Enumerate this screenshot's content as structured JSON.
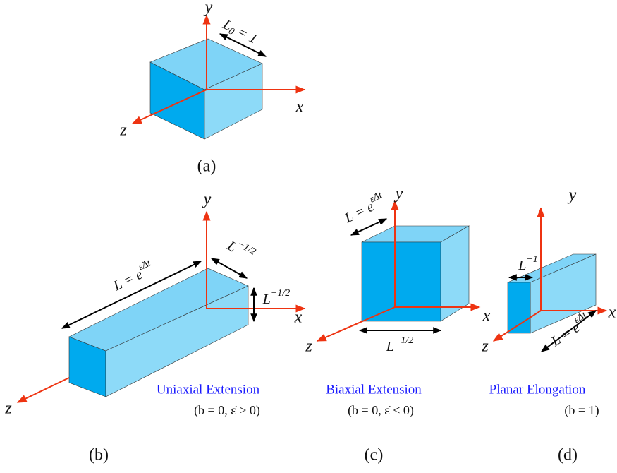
{
  "panels": [
    {
      "label": "(a)",
      "axes": {
        "x": "x",
        "y": "y",
        "z": "z"
      },
      "dims": [
        {
          "base": "L",
          "sub": "0",
          "after": " = 1"
        }
      ]
    },
    {
      "label": "(b)",
      "axes": {
        "x": "x",
        "y": "y",
        "z": "z"
      },
      "title": "Uniaxial Extension",
      "condition": "(b = 0, ε̇ > 0)",
      "dims": [
        {
          "base": "L = e",
          "sup": "ε̇Δt"
        },
        {
          "base": "L",
          "sup": "−1/2"
        },
        {
          "base": "L",
          "sup": "−1/2"
        }
      ]
    },
    {
      "label": "(c)",
      "axes": {
        "x": "x",
        "y": "y",
        "z": "z"
      },
      "title": "Biaxial Extension",
      "condition": "(b = 0, ε̇ < 0)",
      "dims": [
        {
          "base": "L = e",
          "sup": "ε̇Δt"
        },
        {
          "base": "L",
          "sup": "−1/2"
        }
      ]
    },
    {
      "label": "(d)",
      "axes": {
        "x": "x",
        "y": "y",
        "z": "z"
      },
      "title": "Planar Elongation",
      "condition": "(b = 1)",
      "dims": [
        {
          "base": "L",
          "sup": "−1"
        },
        {
          "base": "L = e",
          "sup": "ε̇Δt"
        }
      ]
    }
  ]
}
